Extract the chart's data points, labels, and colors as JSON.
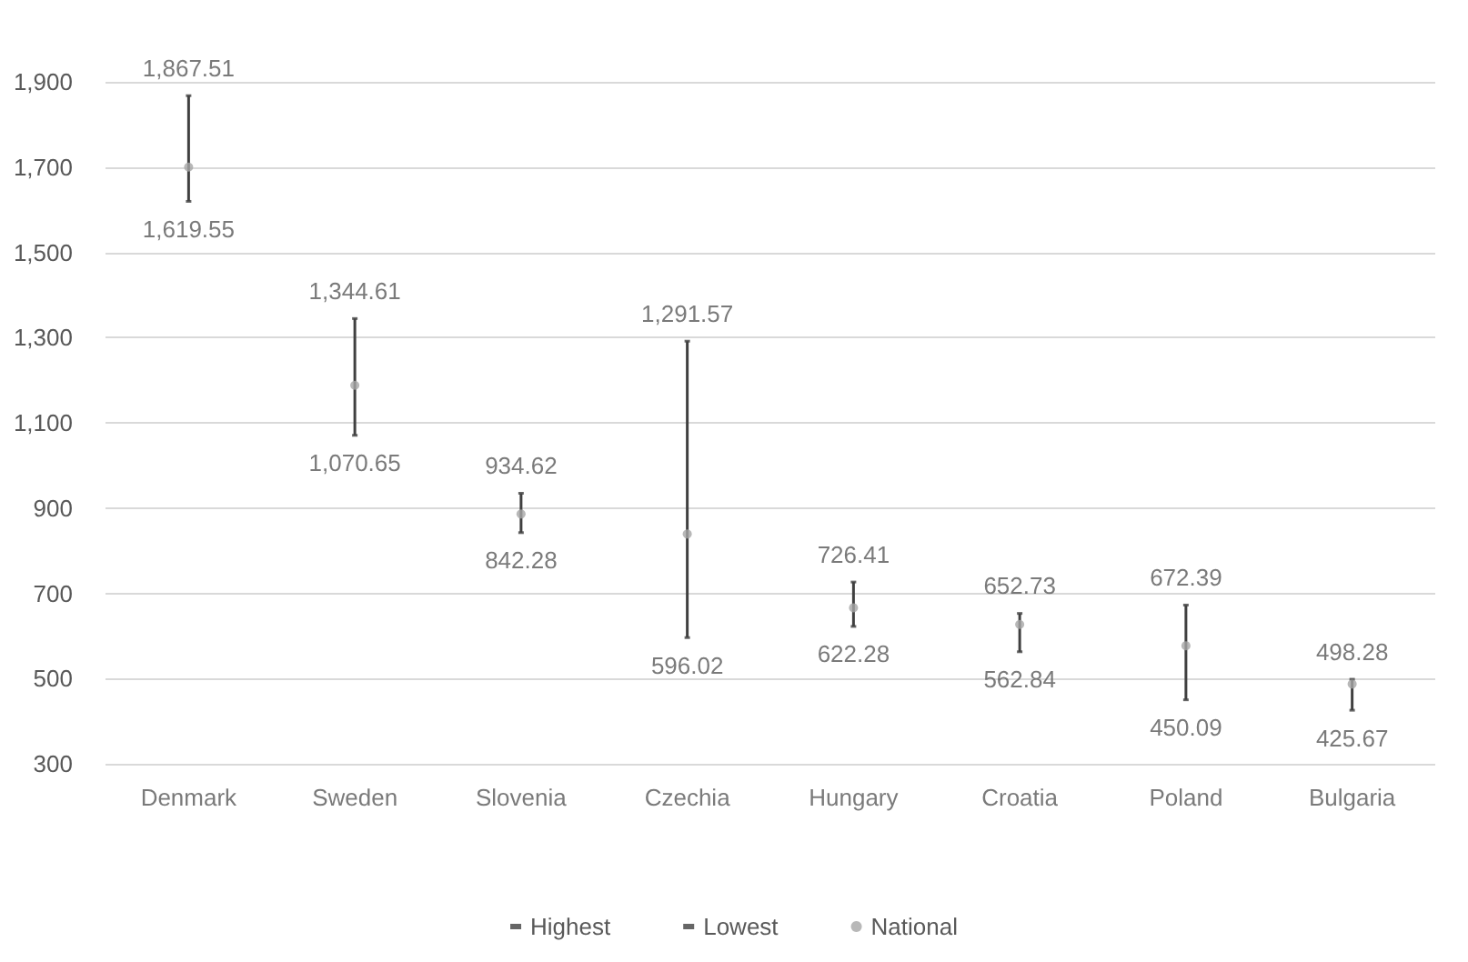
{
  "chart_data": {
    "type": "scatter",
    "categories": [
      "Denmark",
      "Sweden",
      "Slovenia",
      "Czechia",
      "Hungary",
      "Croatia",
      "Poland",
      "Bulgaria"
    ],
    "ylim": [
      300,
      1900
    ],
    "yticks": [
      300,
      500,
      700,
      900,
      {
        "value": 1100,
        "label": "1,100"
      },
      {
        "value": 1300,
        "label": "1,300"
      },
      {
        "value": 1500,
        "label": "1,500"
      },
      {
        "value": 1700,
        "label": "1,700"
      },
      {
        "value": 1900,
        "label": "1,900"
      }
    ],
    "grid": "y",
    "legend": "bottom",
    "series": [
      {
        "name": "Highest",
        "color": "#404040",
        "values": [
          1867.51,
          1344.61,
          934.62,
          1291.57,
          726.41,
          652.73,
          672.39,
          498.28
        ],
        "value_labels": [
          "1,867.51",
          "1,344.61",
          "934.62",
          "1,291.57",
          "726.41",
          "652.73",
          "672.39",
          "498.28"
        ]
      },
      {
        "name": "Lowest",
        "color": "#404040",
        "values": [
          1619.55,
          1070.65,
          842.28,
          596.02,
          622.28,
          562.84,
          450.09,
          425.67
        ],
        "value_labels": [
          "1,619.55",
          "1,070.65",
          "842.28",
          "596.02",
          "622.28",
          "562.84",
          "450.09",
          "425.67"
        ]
      },
      {
        "name": "National",
        "color": "#a6a6a6",
        "marker": "circle",
        "values": [
          1700,
          1188,
          886,
          839,
          666,
          627,
          577,
          487
        ]
      }
    ]
  }
}
